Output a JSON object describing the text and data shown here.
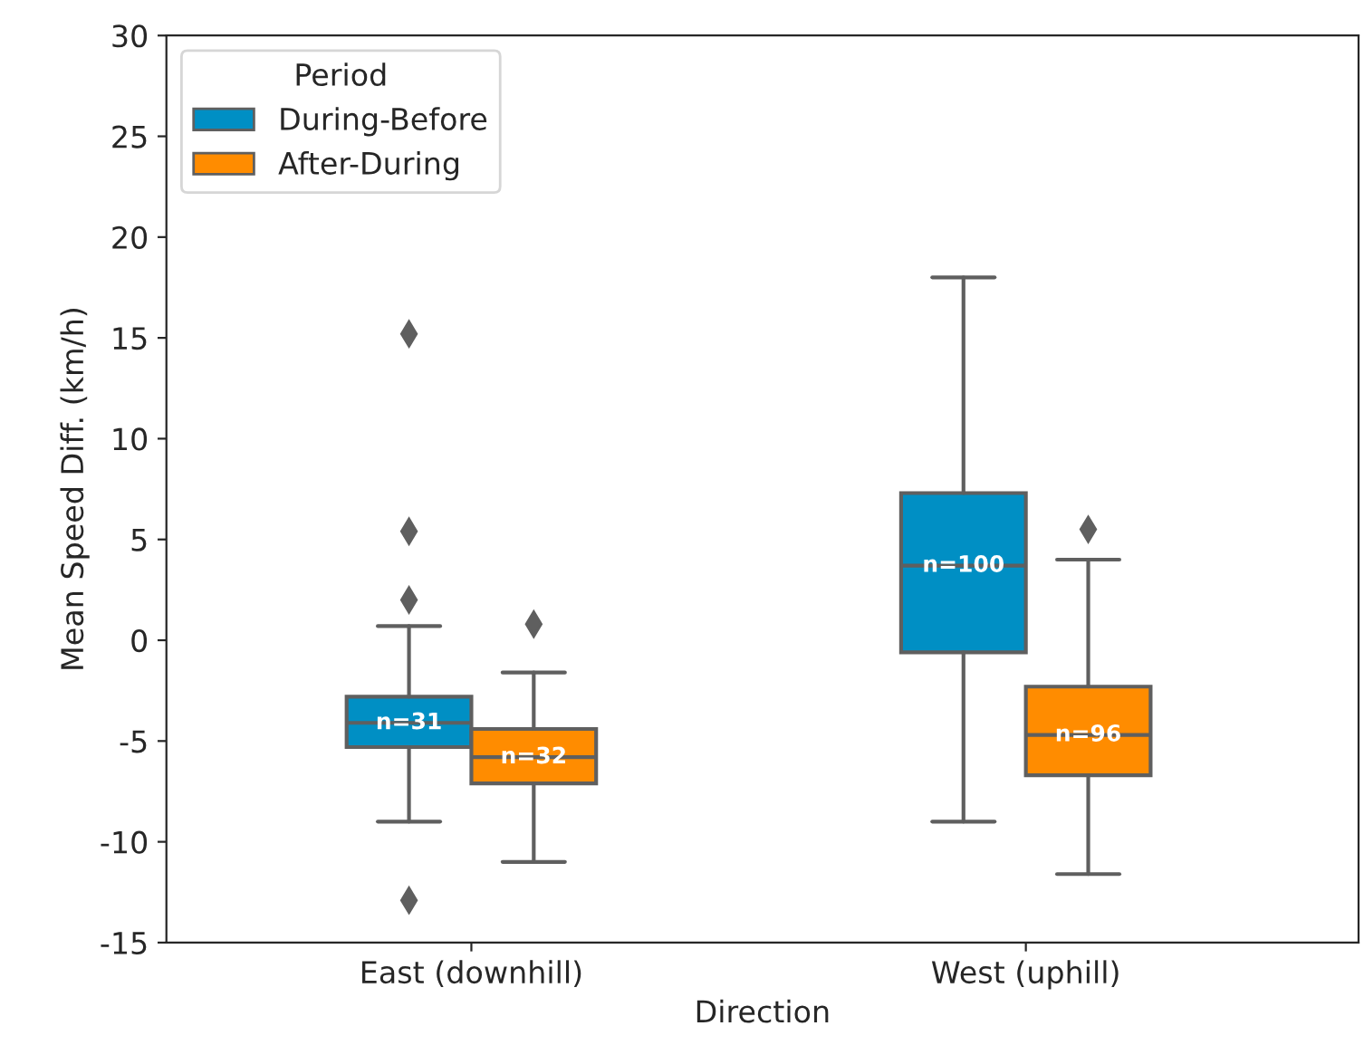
{
  "chart_data": {
    "type": "box",
    "xlabel": "Direction",
    "ylabel": "Mean Speed Diff. (km/h)",
    "legend_title": "Period",
    "legend": "top left",
    "grid": false,
    "marker": "diamond",
    "categories": [
      "East (downhill)",
      "West (uphill)"
    ],
    "ylim": [
      -15,
      30
    ],
    "yticks": [
      -15,
      -10,
      -5,
      0,
      5,
      10,
      15,
      20,
      25,
      30
    ],
    "series": [
      {
        "name": "During-Before",
        "color": "#008fc4",
        "value_labels": [
          "n=31",
          "n=100"
        ],
        "boxes": [
          {
            "low": -9.0,
            "q1": -5.3,
            "median": -4.1,
            "q3": -2.8,
            "high": 0.7,
            "outliers": [
              15.2,
              5.4,
              2.0,
              -12.9
            ]
          },
          {
            "low": -9.0,
            "q1": -0.6,
            "median": 3.7,
            "q3": 7.3,
            "high": 18.0
          }
        ]
      },
      {
        "name": "After-During",
        "color": "#ff8c00",
        "value_labels": [
          "n=32",
          "n=96"
        ],
        "boxes": [
          {
            "low": -11.0,
            "q1": -7.1,
            "median": -5.8,
            "q3": -4.4,
            "high": -1.6,
            "outliers": [
              0.8
            ]
          },
          {
            "low": -11.6,
            "q1": -6.7,
            "median": -4.7,
            "q3": -2.3,
            "high": 4.0,
            "outliers": [
              5.5
            ]
          }
        ]
      }
    ]
  }
}
